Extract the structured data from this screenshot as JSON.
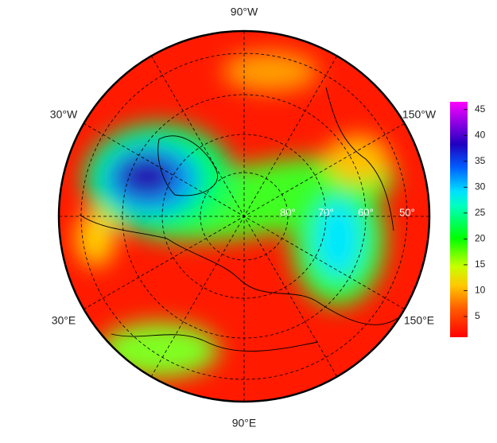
{
  "map": {
    "longitude_labels": [
      "90°W",
      "150°W",
      "150°E",
      "90°E",
      "30°E",
      "30°W"
    ],
    "latitude_labels": [
      "80°",
      "70°",
      "60°",
      "50°"
    ],
    "colorbar": {
      "lim": [
        1,
        46.5
      ],
      "ticks": [
        5,
        10,
        15,
        20,
        25,
        30,
        35,
        40,
        45
      ]
    }
  }
}
